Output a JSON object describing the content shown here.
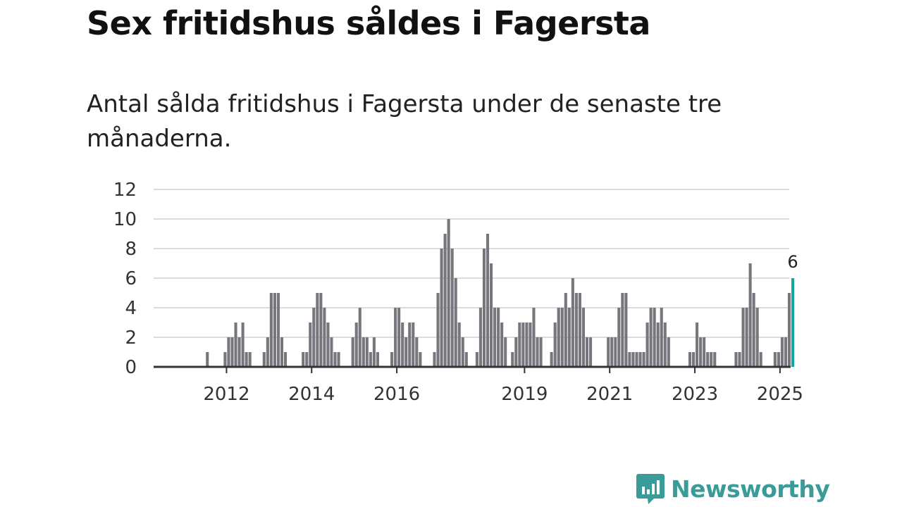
{
  "title": "Sex fritidshus såldes i Fagersta",
  "subtitle": "Antal sålda fritidshus i Fagersta under de senaste tre månaderna.",
  "logo": {
    "text": "Newsworthy",
    "icon": "newsworthy-chart-bubble-icon"
  },
  "colors": {
    "bar": "#77767d",
    "highlight": "#16a5a0",
    "grid": "#dcdcdc",
    "axis": "#333333",
    "brand": "#3a9c98"
  },
  "chart_data": {
    "type": "bar",
    "title": "",
    "xlabel": "",
    "ylabel": "",
    "ylim": [
      0,
      12
    ],
    "yticks": [
      "0",
      "2",
      "4",
      "6",
      "8",
      "10",
      "12"
    ],
    "xticks": [
      "2012",
      "2014",
      "2016",
      "2019",
      "2021",
      "2023",
      "2025"
    ],
    "grid": true,
    "highlight_label": "6",
    "series": [
      {
        "name": "",
        "values": [
          0,
          0,
          0,
          0,
          0,
          0,
          0,
          1,
          0,
          0,
          0,
          0,
          1,
          2,
          2,
          3,
          2,
          3,
          1,
          1,
          0,
          0,
          0,
          1,
          2,
          5,
          5,
          5,
          2,
          1,
          0,
          0,
          0,
          0,
          1,
          1,
          3,
          4,
          5,
          5,
          4,
          3,
          2,
          1,
          1,
          0,
          0,
          0,
          2,
          3,
          4,
          2,
          2,
          1,
          2,
          1,
          0,
          0,
          0,
          1,
          4,
          4,
          3,
          2,
          3,
          3,
          2,
          1,
          0,
          0,
          0,
          1,
          5,
          8,
          9,
          10,
          8,
          6,
          3,
          2,
          1,
          0,
          0,
          1,
          4,
          8,
          9,
          7,
          4,
          4,
          3,
          2,
          0,
          1,
          2,
          3,
          3,
          3,
          3,
          4,
          2,
          2,
          0,
          0,
          1,
          3,
          4,
          4,
          5,
          4,
          6,
          5,
          5,
          4,
          2,
          2,
          0,
          0,
          0,
          0,
          2,
          2,
          2,
          4,
          5,
          5,
          1,
          1,
          1,
          1,
          1,
          3,
          4,
          4,
          3,
          4,
          3,
          2,
          0,
          0,
          0,
          0,
          0,
          1,
          1,
          3,
          2,
          2,
          1,
          1,
          1,
          0,
          0,
          0,
          0,
          0,
          1,
          1,
          4,
          4,
          7,
          5,
          4,
          1,
          0,
          0,
          0,
          1,
          1,
          2,
          2,
          5,
          6
        ]
      }
    ]
  }
}
